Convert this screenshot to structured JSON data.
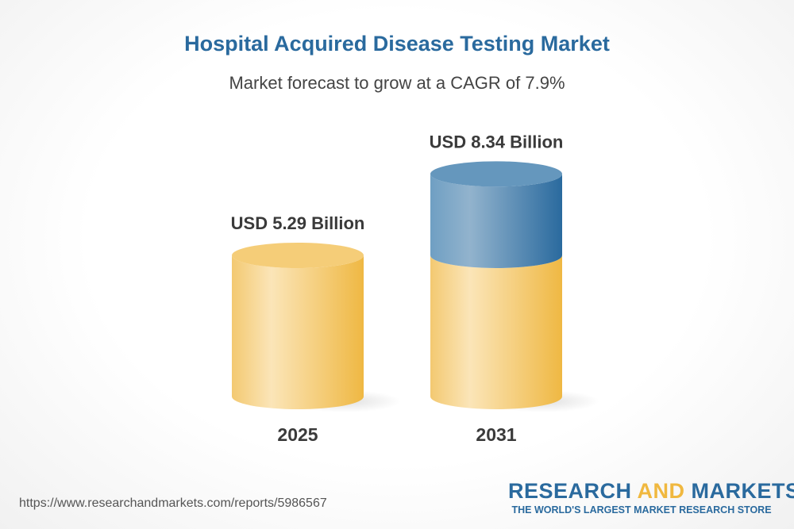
{
  "chart_data": {
    "type": "bar",
    "style": "3d-cylinder",
    "title": "Hospital Acquired Disease Testing Market",
    "subtitle": "Market forecast to grow at a CAGR of 7.9%",
    "categories": [
      "2025",
      "2031"
    ],
    "values": [
      5.29,
      8.34
    ],
    "data_labels": [
      "USD 5.29 Billion",
      "USD 8.34 Billion"
    ],
    "unit": "USD Billion",
    "colors": {
      "base": "#f0b83f",
      "growth": "#2a6a9e"
    },
    "grid": false
  },
  "footer": {
    "url": "https://www.researchandmarkets.com/reports/5986567",
    "logo_part1": "RESEARCH ",
    "logo_part2": "AND",
    "logo_part3": " MARKETS",
    "logo_tagline": "THE WORLD'S LARGEST MARKET RESEARCH STORE"
  }
}
